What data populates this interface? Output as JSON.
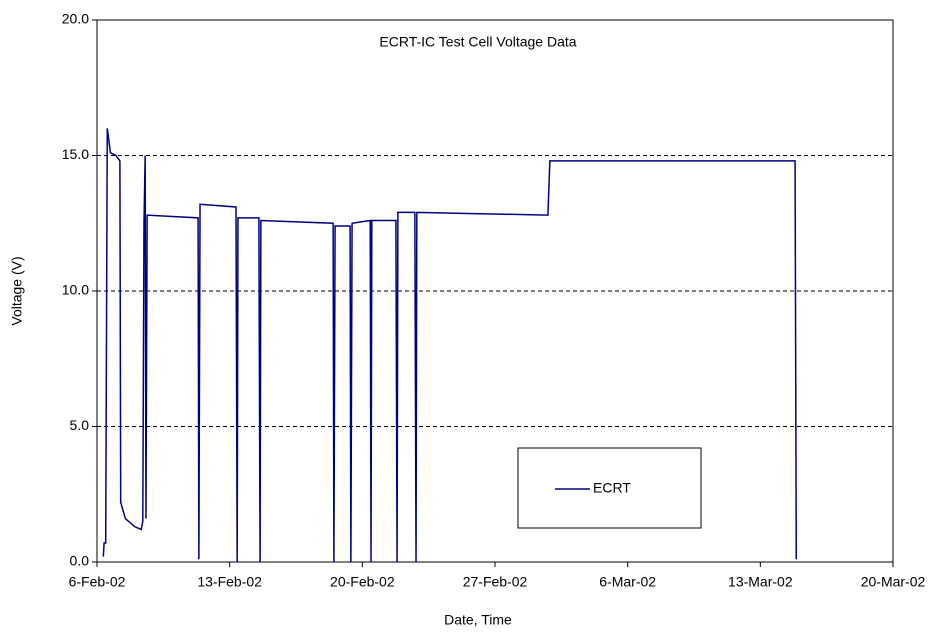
{
  "chart_data": {
    "type": "line",
    "title": "ECRT-IC Test Cell Voltage Data",
    "x_label": "Date, Time",
    "y_label": "Voltage (V)",
    "x": [
      "2002-02-06T08:00",
      "2002-02-06T09:00",
      "2002-02-06T11:00",
      "2002-02-06T13:00",
      "2002-02-06T17:00",
      "2002-02-07T00:00",
      "2002-02-07T05:00",
      "2002-02-07T06:00",
      "2002-02-07T12:00",
      "2002-02-08T00:00",
      "2002-02-08T08:00",
      "2002-02-08T10:00",
      "2002-02-08T11:30",
      "2002-02-08T13:00",
      "2002-02-08T14:00",
      "2002-02-08T15:30",
      "2002-02-11T08:00",
      "2002-02-11T09:00",
      "2002-02-11T10:30",
      "2002-02-13T08:00",
      "2002-02-13T09:30",
      "2002-02-13T10:30",
      "2002-02-14T13:00",
      "2002-02-14T14:30",
      "2002-02-14T15:30",
      "2002-02-18T11:00",
      "2002-02-18T12:00",
      "2002-02-18T13:30",
      "2002-02-19T08:30",
      "2002-02-19T09:30",
      "2002-02-19T11:00",
      "2002-02-20T10:00",
      "2002-02-20T11:00",
      "2002-02-20T12:00",
      "2002-02-21T18:30",
      "2002-02-21T20:00",
      "2002-02-21T21:00",
      "2002-02-22T18:30",
      "2002-02-22T20:00",
      "2002-02-22T21:00",
      "2002-03-01T19:00",
      "2002-03-01T21:30",
      "2002-03-14T20:00",
      "2002-03-14T21:30"
    ],
    "series": [
      {
        "name": "ECRT",
        "color": "#000080",
        "values": [
          0.2,
          0.7,
          0.7,
          16.0,
          15.1,
          15.0,
          14.8,
          2.2,
          1.6,
          1.3,
          1.2,
          1.5,
          12.5,
          15.0,
          1.6,
          12.8,
          12.7,
          0.1,
          13.2,
          13.1,
          0.0,
          12.7,
          12.7,
          0.0,
          12.6,
          12.5,
          0.0,
          12.4,
          12.4,
          0.0,
          12.5,
          12.6,
          0.0,
          12.6,
          12.6,
          0.0,
          12.9,
          12.9,
          0.0,
          12.9,
          12.8,
          14.8,
          14.8,
          0.1
        ]
      }
    ],
    "xlim": [
      "2002-02-06",
      "2002-03-20"
    ],
    "xticks": [
      {
        "value": "2002-02-06",
        "label": "6-Feb-02"
      },
      {
        "value": "2002-02-13",
        "label": "13-Feb-02"
      },
      {
        "value": "2002-02-20",
        "label": "20-Feb-02"
      },
      {
        "value": "2002-02-27",
        "label": "27-Feb-02"
      },
      {
        "value": "2002-03-06",
        "label": "6-Mar-02"
      },
      {
        "value": "2002-03-13",
        "label": "13-Mar-02"
      },
      {
        "value": "2002-03-20",
        "label": "20-Mar-02"
      }
    ],
    "ylim": [
      0,
      20
    ],
    "yticks": [
      {
        "value": 0,
        "label": "0.0"
      },
      {
        "value": 5,
        "label": "5.0"
      },
      {
        "value": 10,
        "label": "10.0"
      },
      {
        "value": 15,
        "label": "15.0"
      },
      {
        "value": 20,
        "label": "20.0"
      }
    ],
    "grid": true
  }
}
